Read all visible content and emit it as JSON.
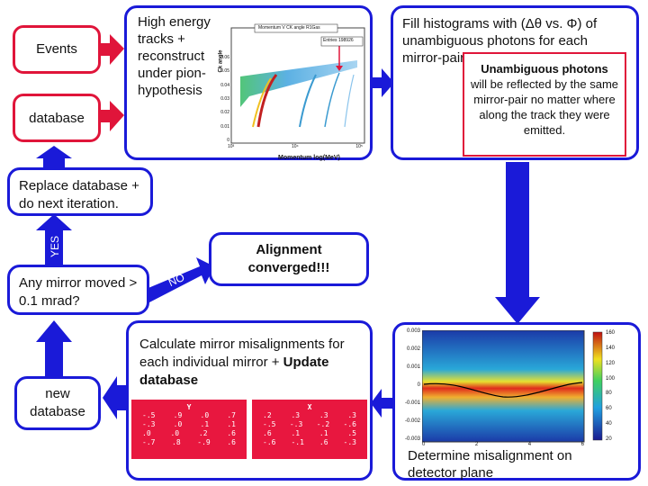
{
  "boxes": {
    "events": "Events",
    "database_top": "database",
    "replace": "Replace database + do next iteration.",
    "question": "Any mirror moved > 0.1 mrad?",
    "converged": "Alignment converged!!!",
    "new_database": "new database",
    "tracks": "High energy tracks + reconstruct under pion-hypothesis",
    "fill": "Fill histograms with (Δθ vs. Φ) of unambiguous photons for each mirror-pair",
    "misalign": "Determine misalignment on detector plane",
    "calculate": "Calculate mirror misalignments for each individual mirror +",
    "calculate_bold": "Update database"
  },
  "labels": {
    "yes": "YES",
    "no": "NO"
  },
  "note": {
    "title": "Unambiguous photons",
    "body": "will be reflected by the same mirror-pair no matter where along the track they were emitted."
  },
  "plot1": {
    "title": "Momentum V CK angle R1Gas",
    "entries": "Entries 198926",
    "ylabel": "Ck angle",
    "xlabel": "Momentum log(MeV)",
    "yticks": [
      "0",
      "0.01",
      "0.02",
      "0.03",
      "0.04",
      "0.05",
      "0.06"
    ],
    "xticks": [
      "10³",
      "10⁴",
      "10⁵"
    ]
  },
  "plot2": {
    "yticks": [
      "0.003",
      "0.002",
      "0.001",
      "0",
      "-0.001",
      "-0.002",
      "-0.003"
    ],
    "xticks": [
      "0",
      "2",
      "4",
      "6"
    ],
    "cbar": [
      "160",
      "140",
      "120",
      "100",
      "80",
      "60",
      "40",
      "20"
    ]
  },
  "tables": [
    {
      "header": "Y",
      "rows": [
        [
          "-.5",
          ".9",
          ".0",
          ".7"
        ],
        [
          "-.3",
          ".0",
          ".1",
          ".1"
        ],
        [
          ".0",
          ".0",
          ".2",
          ".6"
        ],
        [
          "-.7",
          ".8",
          "-.9",
          ".6"
        ]
      ]
    },
    {
      "header": "X",
      "rows": [
        [
          ".2",
          ".3",
          ".3",
          ".3"
        ],
        [
          "-.5",
          "-.3",
          "-.2",
          "-.6"
        ],
        [
          ".6",
          ".1",
          ".1",
          ".5"
        ],
        [
          "-.6",
          "-.1",
          ".6",
          "-.3"
        ]
      ]
    }
  ],
  "colors": {
    "blue": "#1a1ad8",
    "red": "#e0153a"
  }
}
